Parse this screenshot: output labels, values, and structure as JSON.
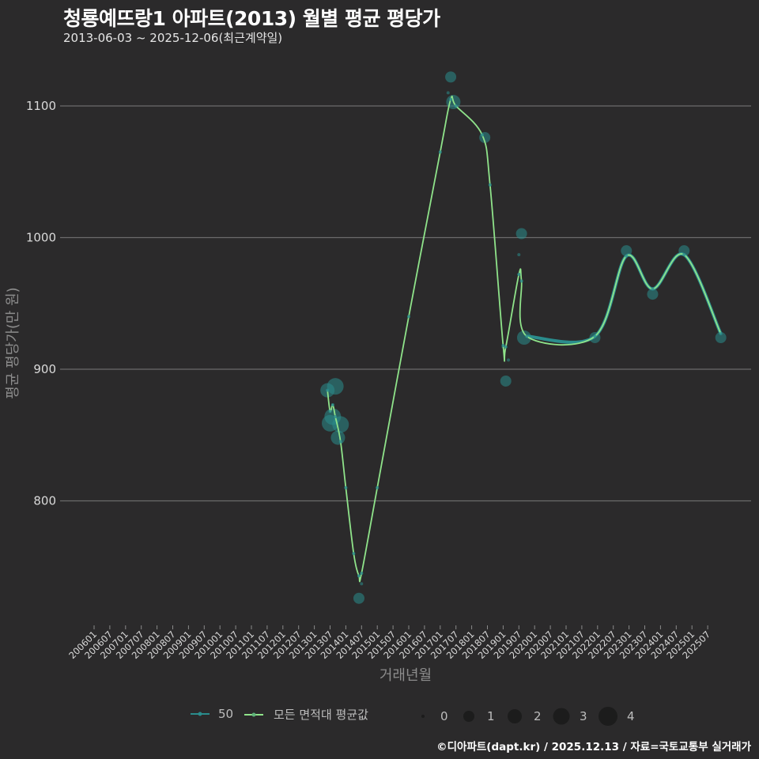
{
  "header": {
    "title": "청룡예뜨랑1 아파트(2013) 월별 평균 평당가",
    "subtitle": "2013-06-03 ~ 2025-12-06(최근계약일)"
  },
  "footer": {
    "credit": "©디아파트(dapt.kr) / 2025.12.13 / 자료=국토교통부 실거래가"
  },
  "legend": {
    "series": [
      {
        "label": "50",
        "color": "#2a8c8c"
      },
      {
        "label": "모든 면적대 평균값",
        "color": "#8fe38a"
      }
    ],
    "sizes": [
      {
        "label": "0",
        "r": 2
      },
      {
        "label": "1",
        "r": 7
      },
      {
        "label": "2",
        "r": 9
      },
      {
        "label": "3",
        "r": 10.5
      },
      {
        "label": "4",
        "r": 12
      }
    ]
  },
  "chart_data": {
    "type": "line",
    "title": "청룡예뜨랑1 아파트(2013) 월별 평균 평당가",
    "subtitle": "2013-06-03 ~ 2025-12-06(최근계약일)",
    "xlabel": "거래년월",
    "ylabel": "평균 평당가(만 원)",
    "ylim": [
      705,
      1130
    ],
    "yticks": [
      800,
      900,
      1000,
      1100
    ],
    "grid": "horizontal",
    "legend_position": "bottom",
    "xticks": [
      "200601",
      "200607",
      "200701",
      "200707",
      "200801",
      "200807",
      "200901",
      "200907",
      "201001",
      "201007",
      "201101",
      "201107",
      "201201",
      "201207",
      "201301",
      "201307",
      "201401",
      "201407",
      "201501",
      "201507",
      "201601",
      "201607",
      "201701",
      "201707",
      "201801",
      "201807",
      "201901",
      "201907",
      "202001",
      "202007",
      "202101",
      "202107",
      "202201",
      "202207",
      "202301",
      "202307",
      "202401",
      "202407",
      "202501",
      "202507"
    ],
    "series": [
      {
        "name": "50",
        "type": "scatter-bubble",
        "color": "#2a8c8c",
        "points": [
          {
            "x": "2013-06",
            "y": 884,
            "size": 2
          },
          {
            "x": "2013-07",
            "y": 859,
            "size": 3
          },
          {
            "x": "2013-08",
            "y": 864,
            "size": 3
          },
          {
            "x": "2013-09",
            "y": 887,
            "size": 3
          },
          {
            "x": "2013-10",
            "y": 848,
            "size": 2
          },
          {
            "x": "2013-11",
            "y": 858,
            "size": 3
          },
          {
            "x": "2014-06",
            "y": 726,
            "size": 1
          },
          {
            "x": "2014-07",
            "y": 737,
            "size": 0
          },
          {
            "x": "2017-04",
            "y": 1110,
            "size": 0
          },
          {
            "x": "2017-05",
            "y": 1122,
            "size": 1
          },
          {
            "x": "2017-06",
            "y": 1103,
            "size": 2
          },
          {
            "x": "2018-06",
            "y": 1076,
            "size": 1
          },
          {
            "x": "2019-01",
            "y": 917,
            "size": 0
          },
          {
            "x": "2019-02",
            "y": 891,
            "size": 1
          },
          {
            "x": "2019-03",
            "y": 907,
            "size": 0
          },
          {
            "x": "2019-07",
            "y": 987,
            "size": 0
          },
          {
            "x": "2019-08",
            "y": 1003,
            "size": 1
          },
          {
            "x": "2019-09",
            "y": 924,
            "size": 2
          },
          {
            "x": "2021-12",
            "y": 924,
            "size": 1
          },
          {
            "x": "2022-12",
            "y": 990,
            "size": 1
          },
          {
            "x": "2023-10",
            "y": 957,
            "size": 1
          },
          {
            "x": "2024-10",
            "y": 990,
            "size": 1
          },
          {
            "x": "2025-12",
            "y": 924,
            "size": 1
          }
        ]
      },
      {
        "name": "모든 면적대 평균값",
        "type": "line",
        "color": "#8fe38a",
        "points": [
          {
            "x": "2013-06",
            "y": 884
          },
          {
            "x": "2013-07",
            "y": 868
          },
          {
            "x": "2013-08",
            "y": 873
          },
          {
            "x": "2013-09",
            "y": 864
          },
          {
            "x": "2013-11",
            "y": 845
          },
          {
            "x": "2014-01",
            "y": 810
          },
          {
            "x": "2014-04",
            "y": 760
          },
          {
            "x": "2014-06",
            "y": 743
          },
          {
            "x": "2014-07",
            "y": 745
          },
          {
            "x": "2015-01",
            "y": 810
          },
          {
            "x": "2016-01",
            "y": 940
          },
          {
            "x": "2017-01",
            "y": 1065
          },
          {
            "x": "2017-05",
            "y": 1105
          },
          {
            "x": "2017-07",
            "y": 1100
          },
          {
            "x": "2018-05",
            "y": 1078
          },
          {
            "x": "2018-08",
            "y": 1040
          },
          {
            "x": "2019-01",
            "y": 918
          },
          {
            "x": "2019-02",
            "y": 917
          },
          {
            "x": "2019-07",
            "y": 972
          },
          {
            "x": "2019-08",
            "y": 967
          },
          {
            "x": "2019-10",
            "y": 925
          },
          {
            "x": "2021-12",
            "y": 925
          },
          {
            "x": "2022-12",
            "y": 986
          },
          {
            "x": "2023-10",
            "y": 961
          },
          {
            "x": "2024-10",
            "y": 987
          },
          {
            "x": "2025-12",
            "y": 927
          }
        ]
      }
    ]
  }
}
